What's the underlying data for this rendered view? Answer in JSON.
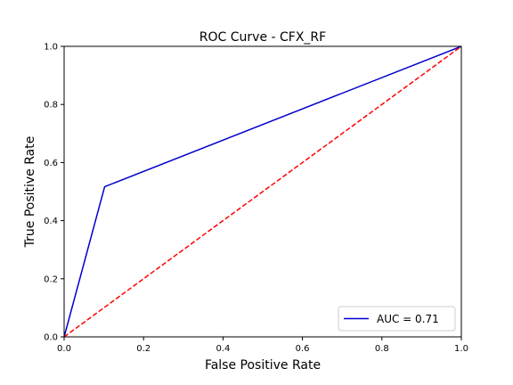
{
  "chart_data": {
    "type": "line",
    "title": "ROC Curve - CFX_RF",
    "xlabel": "False Positive Rate",
    "ylabel": "True Positive Rate",
    "xlim": [
      0.0,
      1.0
    ],
    "ylim": [
      0.0,
      1.0
    ],
    "xticks": [
      "0.0",
      "0.2",
      "0.4",
      "0.6",
      "0.8",
      "1.0"
    ],
    "yticks": [
      "0.0",
      "0.2",
      "0.4",
      "0.6",
      "0.8",
      "1.0"
    ],
    "grid": false,
    "legend_position": "lower-right",
    "series": [
      {
        "name": "AUC = 0.71",
        "color": "#0000cc",
        "style": "solid",
        "x": [
          0.0,
          0.102,
          1.0
        ],
        "y": [
          0.0,
          0.517,
          1.0
        ]
      },
      {
        "color": "#ff0000",
        "style": "dashed",
        "x": [
          0.0,
          1.0
        ],
        "y": [
          0.0,
          1.0
        ]
      }
    ]
  }
}
